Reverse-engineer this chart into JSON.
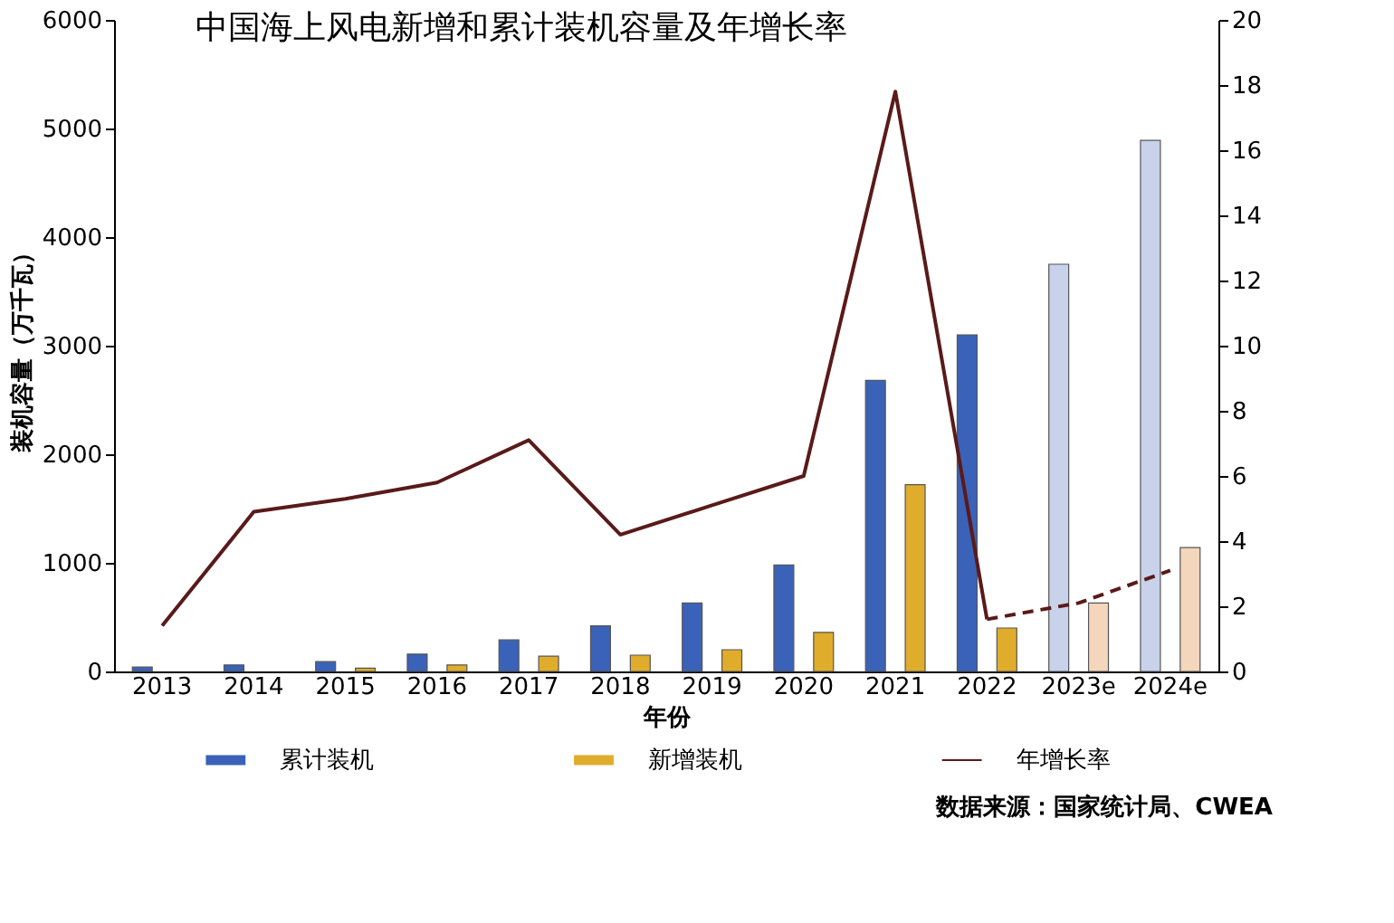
{
  "chart_data": {
    "type": "bar",
    "title": "中国海上风电新增和累计装机容量及年增长率",
    "xlabel": "年份",
    "ylabel": "装机容量（万千瓦）",
    "categories": [
      "2013",
      "2014",
      "2015",
      "2016",
      "2017",
      "2018",
      "2019",
      "2020",
      "2021",
      "2022",
      "2023e",
      "2024e"
    ],
    "series": [
      {
        "name": "累计装机",
        "type": "bar",
        "color": "#3a62b8",
        "colors": [
          "#3a62b8",
          "#3a62b8",
          "#3a62b8",
          "#3a62b8",
          "#3a62b8",
          "#3a62b8",
          "#3a62b8",
          "#3a62b8",
          "#3a62b8",
          "#3a62b8",
          "#c8d2ea",
          "#c8d2ea"
        ],
        "values": [
          40,
          60,
          90,
          160,
          290,
          420,
          630,
          980,
          2680,
          3100,
          3750,
          4890
        ]
      },
      {
        "name": "新增装机",
        "type": "bar",
        "color": "#e0ac2c",
        "colors": [
          "#e0ac2c",
          "#e0ac2c",
          "#e0ac2c",
          "#e0ac2c",
          "#e0ac2c",
          "#e0ac2c",
          "#e0ac2c",
          "#e0ac2c",
          "#e0ac2c",
          "#e0ac2c",
          "#f4d6bc",
          "#f4d6bc"
        ],
        "values": [
          null,
          null,
          30,
          60,
          140,
          150,
          200,
          360,
          1720,
          400,
          630,
          1140
        ]
      },
      {
        "name": "年增长率",
        "type": "line",
        "axis": "y2",
        "color": "#5a1a1a",
        "line_style": "solid",
        "values": [
          1.4,
          4.9,
          5.3,
          5.8,
          7.1,
          4.2,
          5.1,
          6.0,
          17.8,
          1.6,
          null,
          null
        ]
      },
      {
        "type": "line",
        "axis": "y2",
        "color": "#5a1a1a",
        "line_style": "dashed",
        "values": [
          null,
          null,
          null,
          null,
          null,
          null,
          null,
          null,
          null,
          1.6,
          2.1,
          3.1
        ]
      }
    ],
    "ylim": [
      0,
      6000
    ],
    "yticks": [
      0,
      1000,
      2000,
      3000,
      4000,
      5000,
      6000
    ],
    "y2lim": [
      0,
      20
    ],
    "y2ticks": [
      0,
      2,
      4,
      6,
      8,
      10,
      12,
      14,
      16,
      18,
      20
    ],
    "grid": false,
    "legend": "bottom",
    "annotations": [
      "数据来源：国家统计局、CWEA"
    ]
  }
}
